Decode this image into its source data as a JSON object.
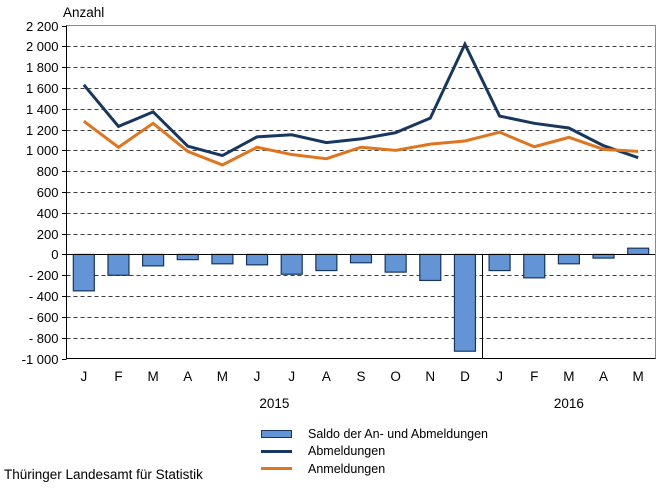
{
  "chart_data": {
    "type": "combo",
    "title": "Anzahl",
    "categories": [
      "J",
      "F",
      "M",
      "A",
      "M",
      "J",
      "J",
      "A",
      "S",
      "O",
      "N",
      "D",
      "J",
      "F",
      "M",
      "A",
      "M"
    ],
    "year_groups": [
      {
        "label": "2015",
        "months": 12
      },
      {
        "label": "2016",
        "months": 5
      }
    ],
    "series": [
      {
        "name": "Saldo der An- und Abmeldungen",
        "type": "bar",
        "color": "#6394D6",
        "border_color": "#17375E",
        "values": [
          -350,
          -200,
          -110,
          -50,
          -90,
          -100,
          -190,
          -155,
          -80,
          -170,
          -250,
          -930,
          -155,
          -225,
          -90,
          -35,
          60
        ]
      },
      {
        "name": "Abmeldungen",
        "type": "line",
        "color": "#17375E",
        "values": [
          1630,
          1230,
          1370,
          1040,
          950,
          1130,
          1150,
          1075,
          1110,
          1170,
          1310,
          2020,
          1330,
          1260,
          1215,
          1045,
          930
        ]
      },
      {
        "name": "Anmeldungen",
        "type": "line",
        "color": "#E0751F",
        "values": [
          1280,
          1030,
          1260,
          990,
          860,
          1030,
          960,
          920,
          1030,
          1000,
          1060,
          1090,
          1175,
          1035,
          1125,
          1010,
          990
        ]
      }
    ],
    "ylim": [
      -1000,
      2200
    ],
    "ytick_step": 200,
    "ytick_labels": [
      "2 200",
      "2 000",
      "1 800",
      "1 600",
      "1 400",
      "1 200",
      "1 000",
      "800",
      "600",
      "400",
      "200",
      "0",
      "- 200",
      "- 400",
      "- 600",
      "- 800",
      "-1 000"
    ],
    "grid": "horizontal-dashed",
    "legend_position": "bottom"
  },
  "footer": {
    "source": "Thüringer Landesamt für Statistik"
  }
}
